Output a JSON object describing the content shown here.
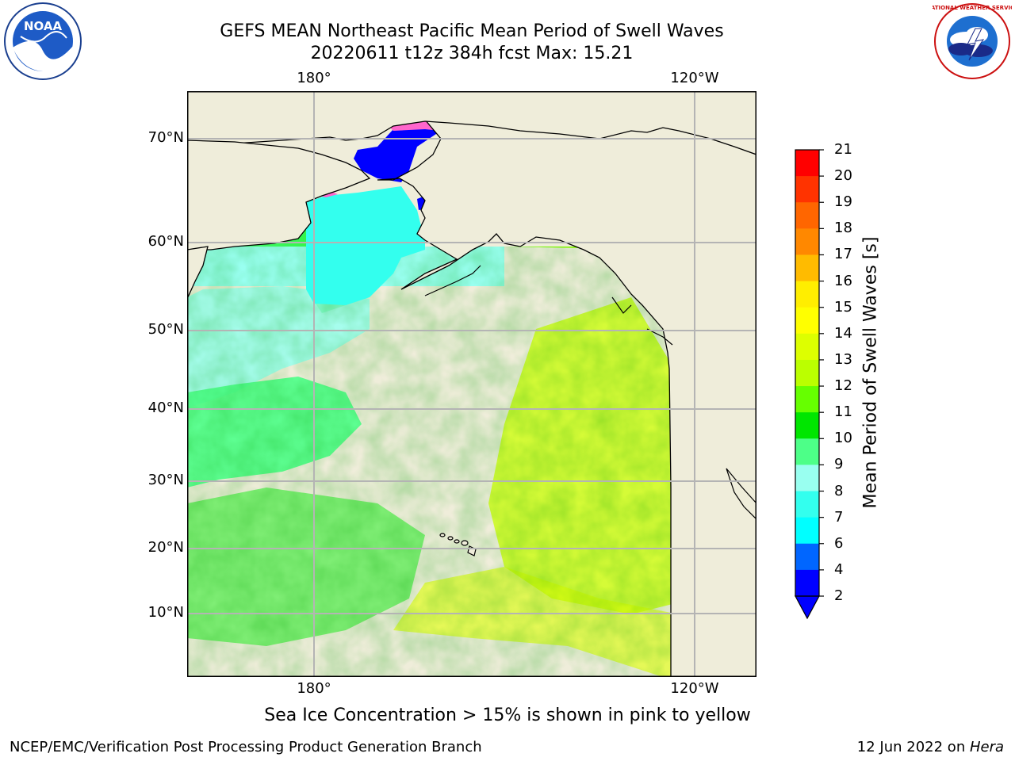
{
  "title": {
    "line1": "GEFS MEAN Northeast Pacific Mean Period of Swell Waves",
    "line2": "20220611 t12z 384h fcst   Max: 15.21"
  },
  "map": {
    "lon_labels": [
      "180°",
      "120°W"
    ],
    "lat_labels": [
      "70°N",
      "60°N",
      "50°N",
      "40°N",
      "30°N",
      "20°N",
      "10°N"
    ],
    "land_color": "#efedda",
    "grid_color": "#b4b4b4"
  },
  "colorbar": {
    "label": "Mean Period of Swell Waves [s]",
    "ticks": [
      "2",
      "4",
      "6",
      "7",
      "8",
      "9",
      "10",
      "11",
      "12",
      "13",
      "14",
      "15",
      "16",
      "17",
      "18",
      "19",
      "20",
      "21"
    ],
    "colors": [
      "#0000ff",
      "#0066ff",
      "#00ffff",
      "#33ffee",
      "#99fff0",
      "#4dff88",
      "#00e600",
      "#66ff00",
      "#bbff00",
      "#ddff00",
      "#ffff00",
      "#ffee00",
      "#ffbb00",
      "#ff8800",
      "#ff6600",
      "#ff3300",
      "#ff0000"
    ],
    "extend_min_color": "#0000ff"
  },
  "note": "Sea Ice Concentration > 15% is shown in pink to yellow",
  "footer": {
    "left": "NCEP/EMC/Verification Post Processing Product Generation Branch",
    "right_prefix": "12 Jun 2022 on ",
    "right_host": "Hera"
  },
  "logos": {
    "left": "noaa-logo",
    "left_text": "NOAA",
    "right": "nws-logo",
    "right_text": "NATIONAL WEATHER SERVICE"
  }
}
